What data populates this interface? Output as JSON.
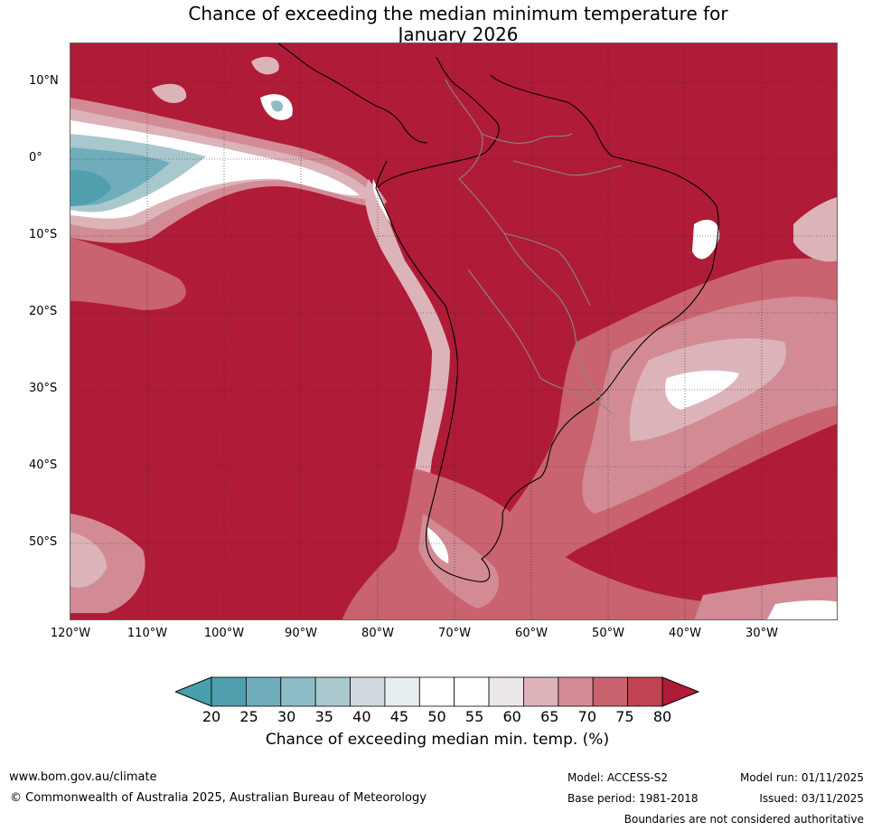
{
  "title": {
    "line1": "Chance of exceeding the median minimum temperature for",
    "line2": "January 2026"
  },
  "axes": {
    "lat_labels": [
      "10°N",
      "0°",
      "10°S",
      "20°S",
      "30°S",
      "40°S",
      "50°S"
    ],
    "lon_labels": [
      "120°W",
      "110°W",
      "100°W",
      "90°W",
      "80°W",
      "70°W",
      "60°W",
      "50°W",
      "40°W",
      "30°W"
    ]
  },
  "colorbar": {
    "ticks": [
      "20",
      "25",
      "30",
      "35",
      "40",
      "45",
      "50",
      "55",
      "60",
      "65",
      "70",
      "75",
      "80"
    ],
    "colors": [
      "#4f9fae",
      "#6fadbb",
      "#8ebcc6",
      "#a9c8cd",
      "#d1dade",
      "#e8eff1",
      "#ffffff",
      "#ffffff",
      "#ece8ea",
      "#ddb3ba",
      "#d28b95",
      "#c9636f",
      "#bf4350"
    ],
    "under_color": "#48a0ad",
    "over_color": "#b01b38",
    "label": "Chance of exceeding median min. temp. (%)"
  },
  "footer": {
    "website": "www.bom.gov.au/climate",
    "copyright": "© Commonwealth of Australia 2025, Australian Bureau of Meteorology",
    "model": "Model: ACCESS-S2",
    "base_period": "Base period: 1981-2018",
    "model_run": "Model run: 01/11/2025",
    "issued": "Issued: 03/11/2025",
    "disclaimer": "Boundaries are not considered authoritative"
  }
}
